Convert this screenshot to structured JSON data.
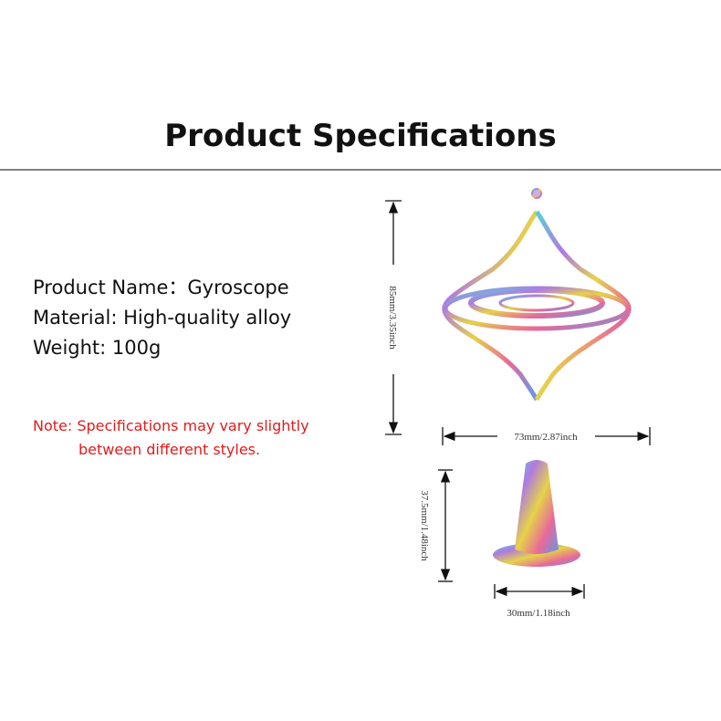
{
  "header": {
    "title": "Product Specifications"
  },
  "specs": [
    "Product Name：Gyroscope",
    "Material: High-quality alloy",
    "Weight: 100g"
  ],
  "note": [
    "Note: Specifications may vary slightly",
    "between different styles."
  ],
  "dimensions": {
    "gyroscope_height": "85mm/3.35inch",
    "gyroscope_width": "73mm/2.87inch",
    "stand_height": "37.5mm/1.48inch",
    "stand_width": "30mm/1.18inch"
  }
}
